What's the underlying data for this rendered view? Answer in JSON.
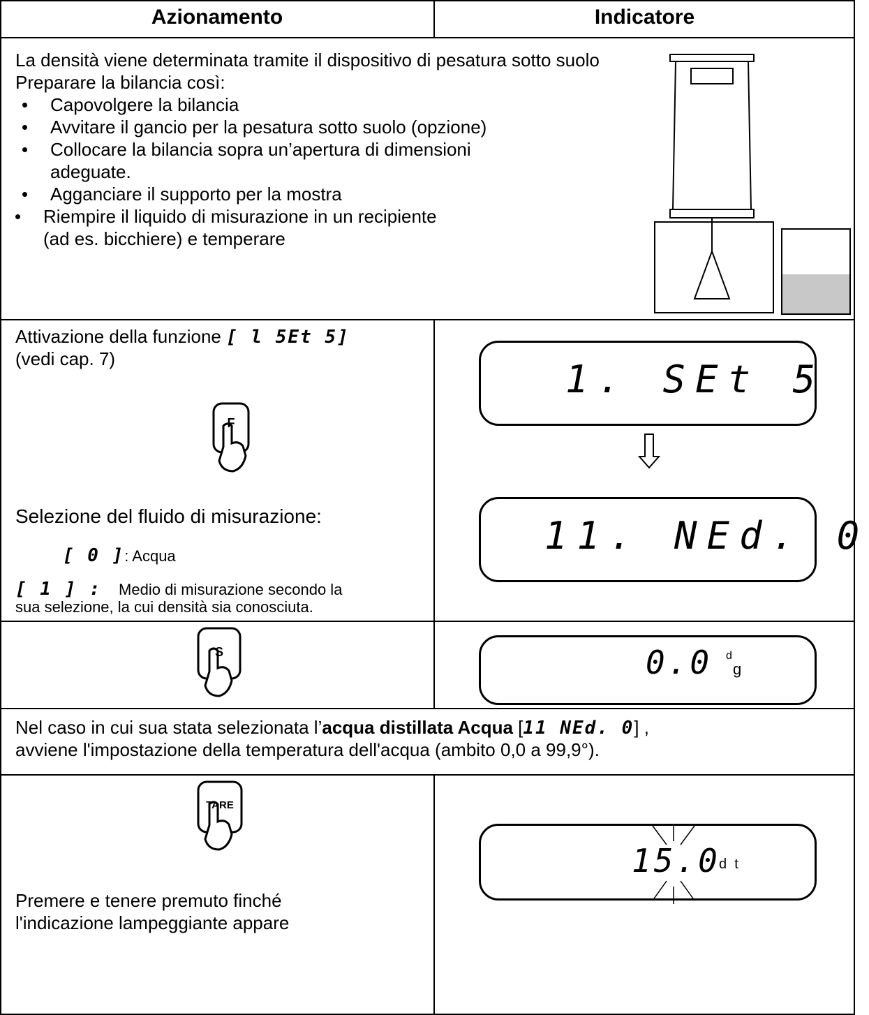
{
  "table": {
    "headers": [
      "Azionamento",
      "Indicatore"
    ],
    "intro": {
      "lines": [
        "La densità viene determinata tramite il dispositivo di pesatura sotto suolo",
        "Preparare la bilancia così:"
      ],
      "bullets": [
        "Capovolgere la bilancia",
        "Avvitare il gancio per la pesatura sotto suolo (opzione)",
        "Collocare la bilancia sopra un’apertura di dimensioni",
        "adeguate.",
        "Agganciare il supporto per la mostra",
        "Riempire il liquido di misurazione in un recipiente",
        "(ad es. bicchiere) e temperare"
      ]
    },
    "step1": {
      "text": "Attivazione della funzione",
      "code": "[ l 5Et 5]",
      "ref": "(vedi cap. 7)",
      "key": "F",
      "select": "Selezione del fluido di misurazione:",
      "option0": {
        "code": "[ 0 ]",
        "label": ": Acqua"
      },
      "option1": {
        "code": "[ 1 ] :",
        "label": "Medio di misurazione secondo la",
        "label2": "sua selezione, la cui densità sia conosciuta."
      },
      "displays": [
        "1. SEt 5",
        "11. NEd. 0"
      ]
    },
    "step2": {
      "key": "S",
      "display": "0.0",
      "unit_top": "d",
      "unit_bottom": "g"
    },
    "note": {
      "before": "Nel caso in cui sua stata selezionata l’",
      "bold": "acqua distillata Acqua",
      "code_open": "[",
      "code": "11 NEd. 0",
      "code_close": "] ,",
      "line2": "avviene l'impostazione della temperatura dell'acqua (ambito 0,0 a 99,9°)."
    },
    "step3": {
      "key": "TARE",
      "text": [
        "Premere e tenere premuto finché",
        "l'indicazione lampeggiante appare"
      ],
      "display": "15.0",
      "unit": "d  t"
    }
  }
}
